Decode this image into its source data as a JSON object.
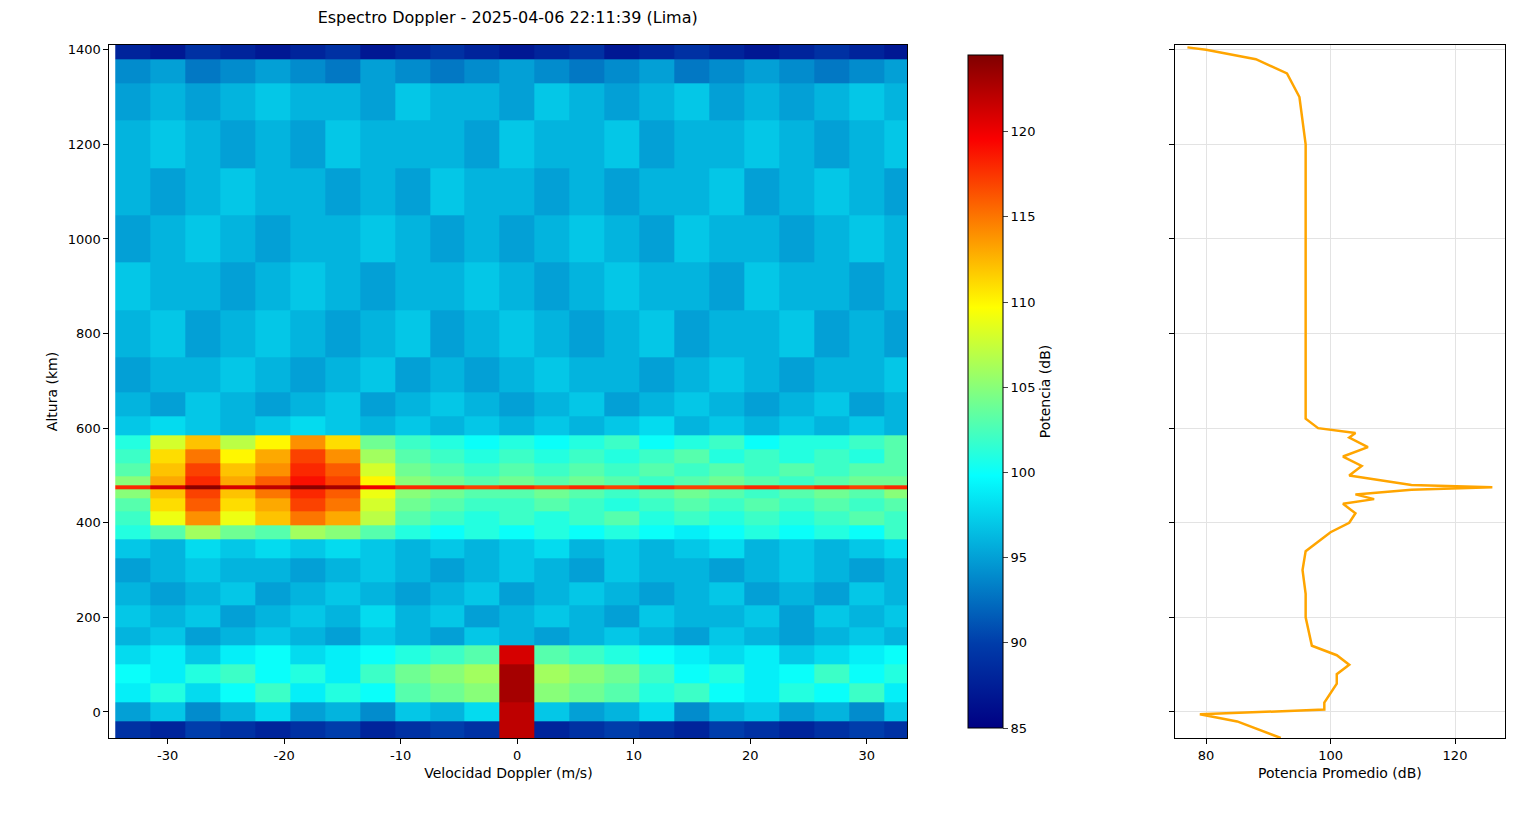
{
  "chart_data": [
    {
      "type": "heatmap",
      "title": "Espectro Doppler - 2025-04-06 22:11:39 (Lima)",
      "x_label": "Velocidad Doppler (m/s)",
      "y_label": "Altura (km)",
      "x": [
        -33,
        -30,
        -27,
        -24,
        -21,
        -18,
        -15,
        -12,
        -9,
        -6,
        -3,
        0,
        3,
        6,
        9,
        12,
        15,
        18,
        21,
        24,
        27,
        30,
        33
      ],
      "y": [
        -40,
        0,
        40,
        80,
        120,
        160,
        200,
        250,
        300,
        350,
        380,
        410,
        440,
        465,
        475,
        485,
        510,
        540,
        570,
        600,
        650,
        700,
        800,
        900,
        1000,
        1100,
        1200,
        1300,
        1360,
        1400
      ],
      "cells": [
        [
          89,
          88,
          90,
          89,
          88,
          89,
          90,
          88,
          89,
          90,
          89,
          122,
          88,
          89,
          90,
          89,
          88,
          90,
          89,
          88,
          89,
          90,
          89
        ],
        [
          95,
          97,
          94,
          96,
          98,
          95,
          96,
          94,
          97,
          96,
          98,
          122,
          97,
          95,
          96,
          98,
          94,
          96,
          97,
          95,
          96,
          94,
          97
        ],
        [
          99,
          101,
          98,
          100,
          102,
          99,
          101,
          100,
          103,
          104,
          105,
          123,
          105,
          104,
          103,
          101,
          102,
          100,
          99,
          101,
          100,
          102,
          99
        ],
        [
          100,
          99,
          101,
          102,
          100,
          101,
          99,
          102,
          104,
          105,
          106,
          123,
          106,
          105,
          104,
          102,
          100,
          101,
          99,
          100,
          102,
          100,
          101
        ],
        [
          98,
          99,
          97,
          99,
          100,
          98,
          99,
          100,
          101,
          102,
          103,
          121,
          103,
          102,
          101,
          100,
          99,
          98,
          99,
          97,
          98,
          99,
          100
        ],
        [
          96,
          97,
          95,
          96,
          97,
          96,
          95,
          97,
          96,
          95,
          97,
          96,
          95,
          96,
          97,
          96,
          95,
          97,
          96,
          95,
          96,
          97,
          96
        ],
        [
          97,
          96,
          97,
          95,
          96,
          97,
          96,
          98,
          96,
          97,
          95,
          96,
          97,
          96,
          95,
          97,
          96,
          96,
          97,
          95,
          97,
          96,
          97
        ],
        [
          96,
          95,
          96,
          97,
          95,
          96,
          97,
          96,
          95,
          96,
          97,
          95,
          96,
          97,
          96,
          95,
          96,
          97,
          95,
          96,
          95,
          97,
          96
        ],
        [
          95,
          96,
          97,
          96,
          96,
          95,
          96,
          97,
          96,
          95,
          96,
          97,
          96,
          95,
          97,
          96,
          96,
          95,
          96,
          97,
          96,
          95,
          96
        ],
        [
          97,
          96,
          98,
          97,
          98,
          97,
          98,
          97,
          96,
          97,
          96,
          97,
          98,
          96,
          97,
          96,
          97,
          98,
          96,
          97,
          96,
          97,
          98
        ],
        [
          101,
          103,
          106,
          104,
          103,
          106,
          105,
          103,
          101,
          100,
          101,
          100,
          101,
          100,
          101,
          100,
          99,
          100,
          101,
          100,
          101,
          100,
          102
        ],
        [
          102,
          109,
          114,
          109,
          112,
          115,
          113,
          107,
          103,
          102,
          101,
          102,
          101,
          102,
          103,
          101,
          102,
          101,
          102,
          101,
          102,
          103,
          102
        ],
        [
          103,
          111,
          116,
          111,
          113,
          117,
          115,
          108,
          104,
          103,
          102,
          102,
          103,
          102,
          101,
          102,
          103,
          102,
          103,
          102,
          103,
          102,
          103
        ],
        [
          105,
          112,
          117,
          112,
          115,
          118,
          116,
          109,
          105,
          104,
          103,
          103,
          104,
          103,
          102,
          103,
          104,
          103,
          102,
          103,
          104,
          103,
          105
        ],
        [
          118,
          121,
          124,
          121,
          122,
          124,
          123,
          120,
          118,
          118,
          117,
          118,
          117,
          118,
          117,
          118,
          117,
          117,
          118,
          117,
          118,
          117,
          118
        ],
        [
          105,
          113,
          118,
          113,
          116,
          119,
          117,
          110,
          105,
          104,
          103,
          104,
          103,
          104,
          103,
          102,
          103,
          104,
          103,
          102,
          103,
          104,
          104
        ],
        [
          103,
          112,
          117,
          112,
          114,
          118,
          116,
          108,
          104,
          103,
          102,
          103,
          102,
          103,
          102,
          103,
          102,
          103,
          102,
          103,
          102,
          103,
          103
        ],
        [
          102,
          111,
          115,
          110,
          113,
          117,
          114,
          106,
          103,
          102,
          101,
          102,
          101,
          102,
          101,
          102,
          103,
          101,
          102,
          101,
          102,
          101,
          103
        ],
        [
          101,
          108,
          112,
          107,
          110,
          114,
          111,
          104,
          102,
          101,
          100,
          101,
          100,
          101,
          102,
          100,
          101,
          102,
          100,
          101,
          101,
          102,
          103
        ],
        [
          97,
          98,
          97,
          96,
          97,
          98,
          97,
          96,
          97,
          96,
          97,
          96,
          97,
          96,
          97,
          98,
          96,
          97,
          96,
          97,
          96,
          97,
          96
        ],
        [
          96,
          95,
          97,
          96,
          95,
          96,
          97,
          95,
          96,
          97,
          96,
          95,
          96,
          97,
          95,
          96,
          97,
          96,
          95,
          96,
          97,
          95,
          96
        ],
        [
          95,
          96,
          96,
          97,
          96,
          95,
          96,
          97,
          95,
          96,
          95,
          96,
          97,
          96,
          96,
          95,
          96,
          97,
          96,
          95,
          96,
          96,
          97
        ],
        [
          96,
          97,
          95,
          96,
          97,
          96,
          95,
          96,
          97,
          95,
          96,
          97,
          96,
          95,
          96,
          97,
          95,
          96,
          96,
          97,
          95,
          96,
          95
        ],
        [
          97,
          96,
          96,
          95,
          96,
          97,
          96,
          95,
          96,
          96,
          97,
          96,
          95,
          96,
          97,
          96,
          96,
          95,
          97,
          96,
          96,
          95,
          96
        ],
        [
          95,
          96,
          97,
          96,
          95,
          96,
          96,
          97,
          96,
          95,
          96,
          95,
          96,
          97,
          96,
          95,
          97,
          96,
          96,
          95,
          96,
          97,
          96
        ],
        [
          96,
          95,
          96,
          97,
          96,
          96,
          95,
          96,
          95,
          97,
          96,
          96,
          95,
          96,
          95,
          96,
          96,
          97,
          95,
          96,
          97,
          96,
          95
        ],
        [
          96,
          97,
          96,
          95,
          96,
          95,
          97,
          96,
          96,
          96,
          95,
          97,
          96,
          96,
          97,
          95,
          96,
          96,
          97,
          96,
          95,
          96,
          97
        ],
        [
          95,
          96,
          95,
          96,
          97,
          96,
          96,
          95,
          97,
          96,
          96,
          95,
          97,
          96,
          95,
          96,
          97,
          95,
          96,
          95,
          96,
          97,
          96
        ],
        [
          94,
          95,
          93,
          94,
          95,
          94,
          93,
          95,
          94,
          93,
          94,
          95,
          94,
          93,
          94,
          95,
          93,
          94,
          95,
          94,
          93,
          94,
          95
        ],
        [
          88,
          87,
          89,
          88,
          87,
          88,
          89,
          87,
          88,
          89,
          88,
          87,
          88,
          89,
          87,
          88,
          89,
          88,
          87,
          88,
          89,
          88,
          87
        ]
      ],
      "xlim": [
        -35,
        33.5
      ],
      "xticks": [
        -30,
        -20,
        -10,
        0,
        10,
        20,
        30
      ],
      "ylim": [
        -55,
        1410
      ],
      "yticks": [
        0,
        200,
        400,
        600,
        800,
        1000,
        1200,
        1400
      ],
      "color": "Jet",
      "colorbar": {
        "title": "Potencia (dB)",
        "range": [
          85,
          124.5
        ],
        "ticks": [
          85,
          90,
          95,
          100,
          105,
          110,
          115,
          120
        ]
      }
    },
    {
      "type": "line",
      "x_label": "Potencia Promedio (dB)",
      "x": [
        92,
        89,
        85,
        79,
        90,
        99,
        99,
        100,
        101,
        101,
        103,
        101,
        97,
        96,
        96,
        95.5,
        96,
        98,
        100,
        103,
        104,
        102,
        107,
        104,
        113,
        126,
        113,
        108,
        103,
        105,
        102,
        106,
        103,
        104,
        98,
        96,
        96,
        96,
        96,
        96,
        96,
        96,
        95,
        93,
        88,
        80,
        77
      ],
      "y": [
        -55,
        -40,
        -20,
        -5,
        0,
        5,
        20,
        40,
        60,
        80,
        100,
        120,
        140,
        200,
        250,
        300,
        340,
        360,
        380,
        400,
        420,
        440,
        450,
        460,
        470,
        475,
        480,
        490,
        500,
        520,
        540,
        560,
        580,
        590,
        600,
        620,
        700,
        800,
        900,
        1000,
        1100,
        1200,
        1300,
        1350,
        1380,
        1400,
        1405
      ],
      "color": "orange",
      "xlim": [
        75,
        128
      ],
      "xticks": [
        80,
        100,
        120
      ],
      "ylim": [
        -55,
        1410
      ],
      "yticks": [
        0,
        200,
        400,
        600,
        800,
        1000,
        1200,
        1400
      ],
      "tick_labels": "x",
      "grid": true
    }
  ]
}
